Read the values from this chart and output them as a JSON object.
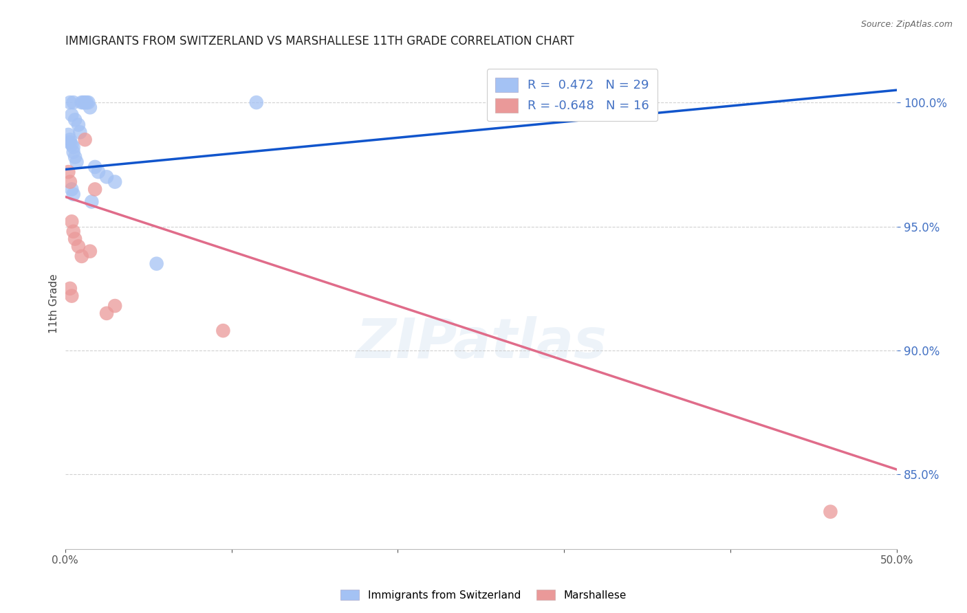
{
  "title": "IMMIGRANTS FROM SWITZERLAND VS MARSHALLESE 11TH GRADE CORRELATION CHART",
  "source": "Source: ZipAtlas.com",
  "ylabel": "11th Grade",
  "yticks": [
    100.0,
    95.0,
    90.0,
    85.0
  ],
  "xmin": 0.0,
  "xmax": 50.0,
  "ymin": 82.0,
  "ymax": 101.8,
  "blue_R": 0.472,
  "blue_N": 29,
  "pink_R": -0.648,
  "pink_N": 16,
  "legend_label_blue": "R =  0.472   N = 29",
  "legend_label_pink": "R = -0.648   N = 16",
  "blue_color": "#a4c2f4",
  "pink_color": "#ea9999",
  "blue_line_color": "#1155cc",
  "pink_line_color": "#e06c8a",
  "watermark": "ZIPatlas",
  "blue_scatter_x": [
    0.3,
    0.5,
    1.0,
    1.1,
    1.2,
    1.3,
    1.4,
    1.5,
    0.4,
    0.6,
    0.8,
    0.9,
    0.2,
    0.3,
    0.3,
    0.4,
    0.5,
    0.5,
    0.6,
    0.7,
    1.8,
    2.0,
    2.5,
    3.0,
    0.4,
    0.5,
    1.6,
    11.5,
    5.5
  ],
  "blue_scatter_y": [
    100.0,
    100.0,
    100.0,
    100.0,
    100.0,
    100.0,
    100.0,
    99.8,
    99.5,
    99.3,
    99.1,
    98.8,
    98.7,
    98.5,
    98.4,
    98.3,
    98.2,
    98.0,
    97.8,
    97.6,
    97.4,
    97.2,
    97.0,
    96.8,
    96.5,
    96.3,
    96.0,
    100.0,
    93.5
  ],
  "pink_scatter_x": [
    0.2,
    0.3,
    0.4,
    0.5,
    0.6,
    0.8,
    1.0,
    1.2,
    1.5,
    1.8,
    2.5,
    3.0,
    0.3,
    0.4,
    9.5,
    46.0
  ],
  "pink_scatter_y": [
    97.2,
    96.8,
    95.2,
    94.8,
    94.5,
    94.2,
    93.8,
    98.5,
    94.0,
    96.5,
    91.5,
    91.8,
    92.5,
    92.2,
    90.8,
    83.5
  ],
  "blue_line_x0": 0.0,
  "blue_line_x1": 50.0,
  "blue_line_y0": 97.3,
  "blue_line_y1": 100.5,
  "pink_line_x0": 0.0,
  "pink_line_x1": 50.0,
  "pink_line_y0": 96.2,
  "pink_line_y1": 85.2
}
